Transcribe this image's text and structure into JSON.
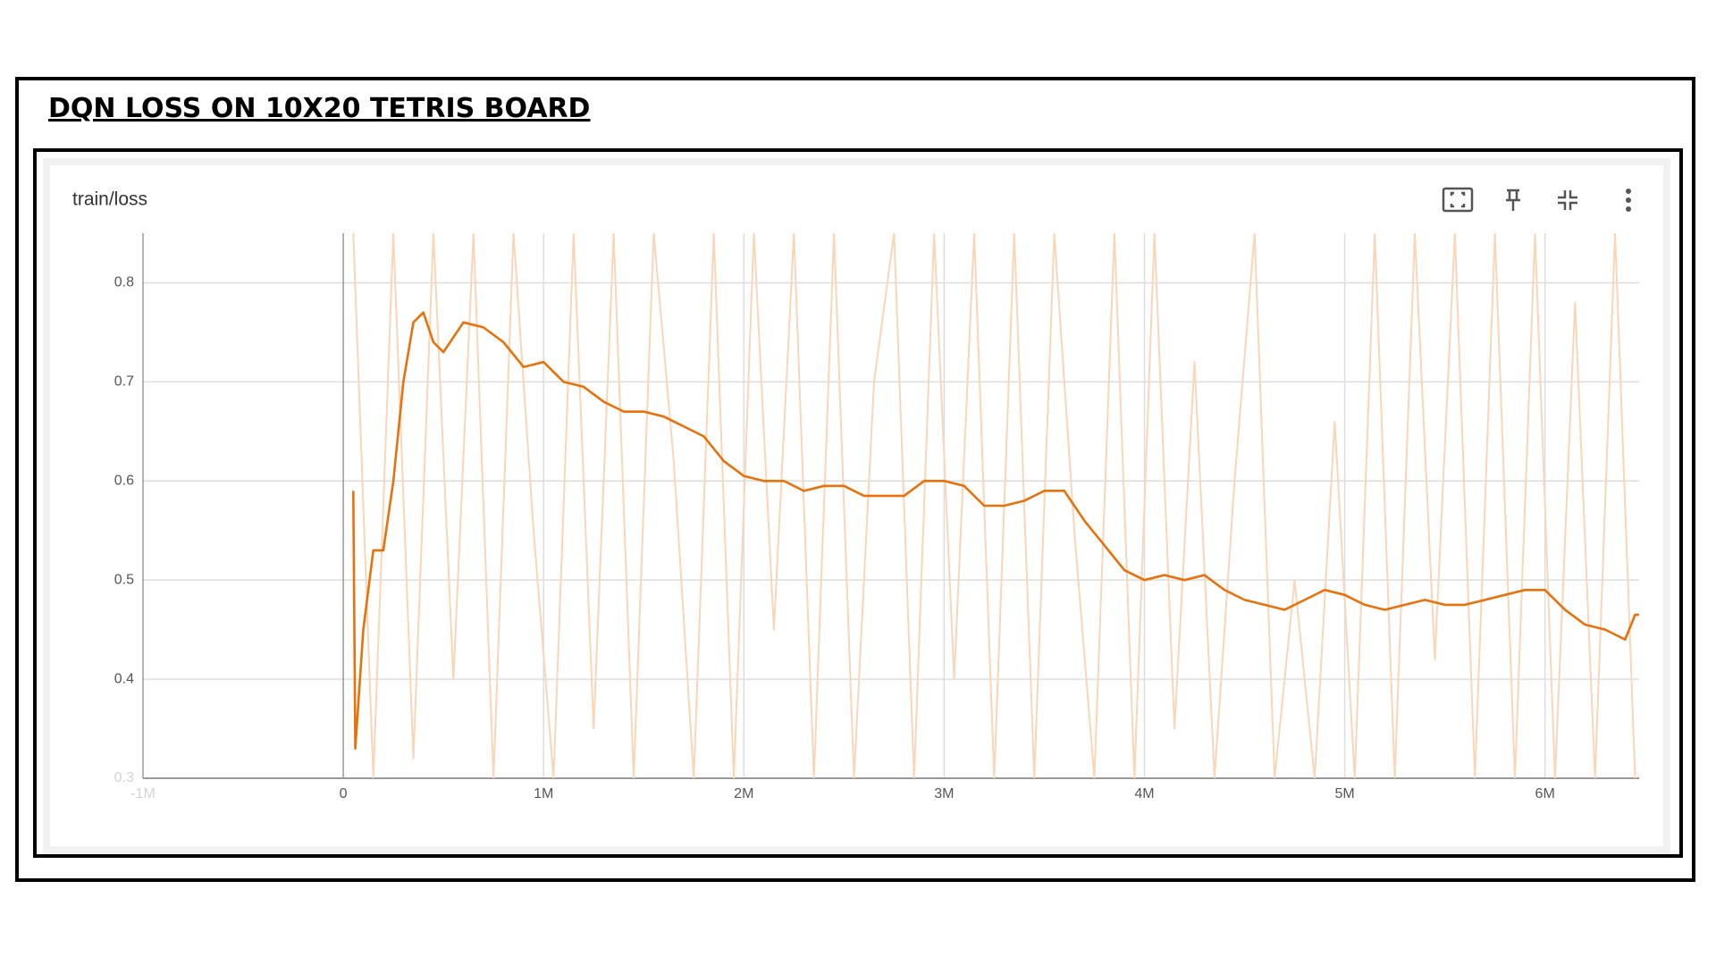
{
  "page_title": "DQN LOSS ON 10X20 TETRIS BOARD",
  "chart_data": {
    "type": "line",
    "title": "train/loss",
    "xlim": [
      -1000000,
      6470000
    ],
    "xticks": [
      {
        "value": -1000000,
        "label": "-1M"
      },
      0,
      {
        "value": 1000000,
        "label": "1M"
      },
      {
        "value": 2000000,
        "label": "2M"
      },
      {
        "value": 3000000,
        "label": "3M"
      },
      {
        "value": 4000000,
        "label": "4M"
      },
      {
        "value": 5000000,
        "label": "5M"
      },
      {
        "value": 6000000,
        "label": "6M"
      }
    ],
    "ylim": [
      0.3,
      0.85
    ],
    "yticks": [
      0.3,
      0.4,
      0.5,
      0.6,
      0.7,
      0.8
    ],
    "grid": true,
    "series": [
      {
        "color": "#f9d6b8",
        "x": [
          50000,
          150000,
          250000,
          350000,
          450000,
          550000,
          650000,
          750000,
          850000,
          950000,
          1050000,
          1150000,
          1250000,
          1350000,
          1450000,
          1550000,
          1650000,
          1750000,
          1850000,
          1950000,
          2050000,
          2150000,
          2250000,
          2350000,
          2450000,
          2550000,
          2650000,
          2750000,
          2850000,
          2950000,
          3050000,
          3150000,
          3250000,
          3350000,
          3450000,
          3550000,
          3650000,
          3750000,
          3850000,
          3950000,
          4050000,
          4150000,
          4250000,
          4350000,
          4450000,
          4550000,
          4650000,
          4750000,
          4850000,
          4950000,
          5050000,
          5150000,
          5250000,
          5350000,
          5450000,
          5550000,
          5650000,
          5750000,
          5850000,
          5950000,
          6050000,
          6150000,
          6250000,
          6350000,
          6450000
        ],
        "values": [
          0.85,
          0.3,
          0.85,
          0.32,
          0.85,
          0.4,
          0.85,
          0.3,
          0.85,
          0.55,
          0.3,
          0.85,
          0.35,
          0.85,
          0.3,
          0.85,
          0.62,
          0.3,
          0.85,
          0.3,
          0.85,
          0.45,
          0.85,
          0.3,
          0.85,
          0.3,
          0.7,
          0.85,
          0.3,
          0.85,
          0.4,
          0.85,
          0.3,
          0.85,
          0.3,
          0.85,
          0.55,
          0.3,
          0.85,
          0.3,
          0.85,
          0.35,
          0.72,
          0.3,
          0.6,
          0.85,
          0.3,
          0.5,
          0.3,
          0.66,
          0.3,
          0.85,
          0.3,
          0.85,
          0.42,
          0.85,
          0.3,
          0.85,
          0.3,
          0.85,
          0.3,
          0.78,
          0.3,
          0.85,
          0.3
        ]
      },
      {
        "color": "#e8710a",
        "x": [
          50000,
          60000,
          100000,
          150000,
          200000,
          250000,
          300000,
          350000,
          400000,
          450000,
          500000,
          600000,
          700000,
          800000,
          900000,
          1000000,
          1100000,
          1200000,
          1300000,
          1400000,
          1500000,
          1600000,
          1700000,
          1800000,
          1900000,
          2000000,
          2100000,
          2200000,
          2300000,
          2400000,
          2500000,
          2600000,
          2700000,
          2800000,
          2900000,
          3000000,
          3100000,
          3200000,
          3300000,
          3400000,
          3500000,
          3600000,
          3700000,
          3800000,
          3900000,
          4000000,
          4100000,
          4200000,
          4300000,
          4400000,
          4500000,
          4600000,
          4700000,
          4800000,
          4900000,
          5000000,
          5100000,
          5200000,
          5300000,
          5400000,
          5500000,
          5600000,
          5700000,
          5800000,
          5900000,
          6000000,
          6100000,
          6200000,
          6300000,
          6400000,
          6450000,
          6470000
        ],
        "values": [
          0.59,
          0.33,
          0.45,
          0.53,
          0.53,
          0.6,
          0.7,
          0.76,
          0.77,
          0.74,
          0.73,
          0.76,
          0.755,
          0.74,
          0.715,
          0.72,
          0.7,
          0.695,
          0.68,
          0.67,
          0.67,
          0.665,
          0.655,
          0.645,
          0.62,
          0.605,
          0.6,
          0.6,
          0.59,
          0.595,
          0.595,
          0.585,
          0.585,
          0.585,
          0.6,
          0.6,
          0.595,
          0.575,
          0.575,
          0.58,
          0.59,
          0.59,
          0.56,
          0.535,
          0.51,
          0.5,
          0.505,
          0.5,
          0.505,
          0.49,
          0.48,
          0.475,
          0.47,
          0.48,
          0.49,
          0.485,
          0.475,
          0.47,
          0.475,
          0.48,
          0.475,
          0.475,
          0.48,
          0.485,
          0.49,
          0.49,
          0.47,
          0.455,
          0.45,
          0.44,
          0.465,
          0.465
        ]
      }
    ]
  }
}
